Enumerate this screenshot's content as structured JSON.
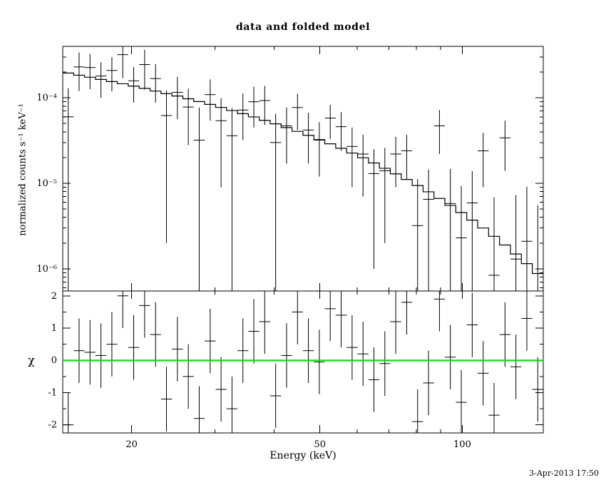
{
  "title": "data and folded model",
  "timestamp": "3-Apr-2013 17:50",
  "colors": {
    "foreground": "#000000",
    "background": "#ffffff",
    "model_line": "#000000",
    "data_points": "#000000",
    "zero_line": "#00e000"
  },
  "chart_data": {
    "type": "line",
    "description": "XSPEC-style spectral fit: top panel shows data points with error bars and a stepped folded model on log-log axes; bottom panel shows chi residuals with a green zero line.",
    "xlabel": "Energy (keV)",
    "xscale": "log",
    "xlim": [
      14.3,
      148.3
    ],
    "xticks": [
      {
        "value": 20,
        "label": "20"
      },
      {
        "value": 50,
        "label": "50"
      },
      {
        "value": 100,
        "label": "100"
      }
    ],
    "xticks_minor": [
      30,
      40,
      60,
      70,
      80,
      90
    ],
    "top_panel": {
      "ylabel": "normalized counts s⁻¹ keV⁻¹",
      "yscale": "log",
      "ylim": [
        5.5e-07,
        0.0004
      ],
      "yticks": [
        {
          "value": 0.0001,
          "label": "10⁻⁴"
        },
        {
          "value": 1e-05,
          "label": "10⁻⁵"
        },
        {
          "value": 1e-06,
          "label": "10⁻⁶"
        }
      ],
      "bin_edges": [
        14.3,
        15.08,
        15.9,
        16.77,
        17.69,
        18.65,
        19.67,
        20.74,
        21.88,
        23.07,
        24.33,
        25.66,
        27.06,
        28.54,
        30.1,
        31.74,
        33.47,
        35.3,
        37.22,
        39.25,
        41.4,
        43.66,
        46.04,
        48.55,
        51.2,
        54.0,
        56.95,
        60.06,
        63.33,
        66.79,
        70.44,
        74.28,
        78.34,
        82.61,
        87.12,
        91.88,
        96.9,
        102.19,
        107.77,
        113.66,
        119.87,
        126.41,
        133.32,
        140.6,
        148.3
      ],
      "model": [
        0.000195,
        0.000184,
        0.000174,
        0.000164,
        0.000155,
        0.000146,
        0.000137,
        0.000129,
        0.00012,
        0.000112,
        0.000105,
        9.75e-05,
        9.05e-05,
        8.38e-05,
        7.73e-05,
        7.11e-05,
        6.53e-05,
        5.98e-05,
        5.45e-05,
        4.96e-05,
        4.49e-05,
        4.05e-05,
        3.64e-05,
        3.25e-05,
        2.9e-05,
        2.57e-05,
        2.26e-05,
        1.99e-05,
        1.73e-05,
        1.5e-05,
        1.29e-05,
        1.11e-05,
        9.42e-06,
        7.95e-06,
        6.65e-06,
        5.52e-06,
        4.55e-06,
        3.71e-06,
        3e-06,
        2.4e-06,
        1.9e-06,
        1.49e-06,
        1.15e-06,
        8.8e-07
      ],
      "data": [
        6e-05,
        0.00023,
        0.000226,
        0.00018,
        0.000209,
        0.00032,
        0.000158,
        0.000245,
        0.000168,
        6.2e-05,
        0.000116,
        7.8e-05,
        3.2e-05,
        0.000109,
        5.4e-05,
        3.6e-05,
        7.2e-05,
        9e-05,
        9.3e-05,
        3e-05,
        4.7e-05,
        7.7e-05,
        4.2e-05,
        3.2e-05,
        5.8e-05,
        4.6e-05,
        2.7e-05,
        2.2e-05,
        1.3e-05,
        1.4e-05,
        2.2e-05,
        2.4e-05,
        3.2e-06,
        6.5e-06,
        4.7e-05,
        5.8e-06,
        2.3e-06,
        5.9e-06,
        2.4e-05,
        8.4e-07,
        3.4e-05,
        1.3e-06,
        2.1e-06,
        5.3e-07
      ],
      "data_err": [
        7e-05,
        0.00011,
        0.0001,
        8e-05,
        9e-05,
        0.00015,
        7e-05,
        0.00012,
        8e-05,
        6e-05,
        6e-05,
        5e-05,
        4.5e-05,
        5.5e-05,
        4.5e-05,
        4e-05,
        4e-05,
        4.5e-05,
        4.5e-05,
        3.5e-05,
        3e-05,
        3.5e-05,
        2.5e-05,
        2e-05,
        2.5e-05,
        2.2e-05,
        1.8e-05,
        1.5e-05,
        1.2e-05,
        1.2e-05,
        1.3e-05,
        1.3e-05,
        8e-06,
        8e-06,
        2.5e-05,
        9e-06,
        7e-06,
        8e-06,
        1.5e-05,
        6e-06,
        2e-05,
        6e-06,
        7e-06,
        5e-06
      ]
    },
    "bottom_panel": {
      "ylabel": "χ",
      "yscale": "linear",
      "ylim": [
        -2.25,
        2.15
      ],
      "yticks": [
        {
          "value": 2,
          "label": "2"
        },
        {
          "value": 1,
          "label": "1"
        },
        {
          "value": 0,
          "label": "0"
        },
        {
          "value": -1,
          "label": "-1"
        },
        {
          "value": -2,
          "label": "-2"
        }
      ],
      "yticks_minor": [
        -1.5,
        -0.5,
        0.5,
        1.5
      ],
      "chi": [
        -2.0,
        0.3,
        0.25,
        0.15,
        0.5,
        2.0,
        0.4,
        1.7,
        0.8,
        -1.2,
        0.35,
        -0.5,
        -1.8,
        0.6,
        -0.9,
        -1.5,
        0.3,
        0.9,
        1.2,
        -1.1,
        0.15,
        1.5,
        0.3,
        -0.05,
        1.6,
        1.4,
        0.4,
        0.2,
        -0.6,
        -0.1,
        1.2,
        1.8,
        -1.9,
        -0.7,
        1.9,
        0.1,
        -1.3,
        1.1,
        -0.4,
        -1.7,
        0.8,
        -0.2,
        1.3,
        -0.9
      ],
      "chi_err": 1.0,
      "zero_line_value": 0
    }
  }
}
